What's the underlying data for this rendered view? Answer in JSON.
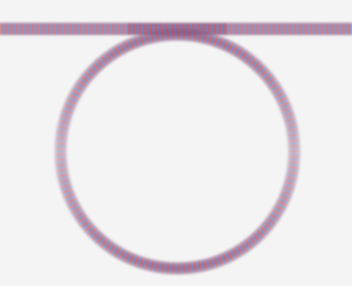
{
  "figure": {
    "background_color": "#f4f4f4",
    "positive_color": "#c0392b",
    "negative_color": "#2c6fb3",
    "structures": [
      {
        "id": "bus-waveguide",
        "shape": "straight-waveguide"
      },
      {
        "id": "ring-resonator",
        "shape": "ring"
      }
    ]
  }
}
